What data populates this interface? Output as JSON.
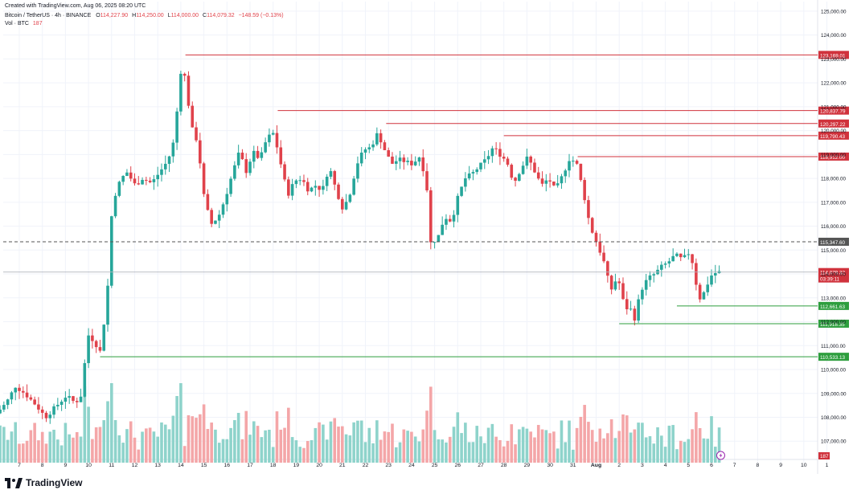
{
  "header": {
    "created": "Created with TradingView.com, Aug 06, 2025 08:20 UTC",
    "symbol": "Bitcoin / TetherUS · 4h · BINANCE",
    "o_label": "O",
    "o": "114,227.90",
    "h_label": "H",
    "h": "114,250.00",
    "l_label": "L",
    "l": "114,000.00",
    "c_label": "C",
    "c": "114,079.32",
    "change": "−148.59 (−0.13%)",
    "vol_label": "Vol · BTC",
    "vol": "187"
  },
  "brand": {
    "name": "TradingView",
    "logo_icon": "tradingview-logo-icon"
  },
  "colors": {
    "up": "#26a69a",
    "down": "#e0424b",
    "up_vol": "#8ed3cb",
    "down_vol": "#f4a6a8",
    "level_red": "#d0323c",
    "level_green": "#2e9e3e"
  },
  "chart_data": {
    "type": "candlestick",
    "y_ticks": [
      107000,
      108000,
      109000,
      110000,
      111000,
      112000,
      113000,
      114000,
      115000,
      116000,
      117000,
      118000,
      119000,
      120000,
      121000,
      122000,
      123000,
      124000,
      125000
    ],
    "y_tick_labels": [
      "107,000.00",
      "108,000.00",
      "109,000.00",
      "110,000.00",
      "111,000.00",
      "112,000.00",
      "113,000.00",
      "114,000.00",
      "115,000.00",
      "116,000.00",
      "117,000.00",
      "118,000.00",
      "119,000.00",
      "120,000.00",
      "121,000.00",
      "122,000.00",
      "123,000.00",
      "124,000.00",
      "125,000.00"
    ],
    "ylim": [
      106100,
      125400
    ],
    "x_labels": [
      "7",
      "8",
      "9",
      "10",
      "11",
      "12",
      "13",
      "14",
      "15",
      "16",
      "17",
      "18",
      "19",
      "20",
      "21",
      "22",
      "23",
      "24",
      "25",
      "26",
      "27",
      "28",
      "29",
      "30",
      "31",
      "Aug",
      "2",
      "3",
      "4",
      "5",
      "6",
      "7",
      "8",
      "9",
      "10",
      "1"
    ],
    "levels": [
      {
        "value": 123169.01,
        "label": "123,169.01",
        "color": "red",
        "start_day": 14.2
      },
      {
        "value": 120837.79,
        "label": "120,837.79",
        "color": "red",
        "start_day": 18.2
      },
      {
        "value": 120297.22,
        "label": "120,297.22",
        "color": "red",
        "start_day": 22.9
      },
      {
        "value": 119790.43,
        "label": "119,790.43",
        "color": "red",
        "start_day": 28.0
      },
      {
        "value": 118912.0,
        "label": "118,912.00",
        "color": "red",
        "start_day": 31.2
      },
      {
        "value": 112661.63,
        "label": "112,661.63",
        "color": "green",
        "start_day": 35.5
      },
      {
        "value": 111918.35,
        "label": "111,918.35",
        "color": "green",
        "start_day": 33.0
      },
      {
        "value": 110533.13,
        "label": "110,533.13",
        "color": "green",
        "start_day": 10.5
      }
    ],
    "dashed_level": {
      "value": 115347.6,
      "label": "115,347.60"
    },
    "current_price": {
      "value": 114079.32,
      "label": "114,079.32",
      "countdown": "03:39:11"
    },
    "volume_badge": "187",
    "anchors": [
      [
        6.0,
        108000
      ],
      [
        6.6,
        108600
      ],
      [
        7.0,
        109300
      ],
      [
        7.4,
        109000
      ],
      [
        7.9,
        108500
      ],
      [
        8.3,
        108000
      ],
      [
        8.8,
        108500
      ],
      [
        9.2,
        108900
      ],
      [
        9.6,
        108600
      ],
      [
        9.9,
        109000
      ],
      [
        10.1,
        111500
      ],
      [
        10.4,
        111200
      ],
      [
        10.7,
        110700
      ],
      [
        11.0,
        113500
      ],
      [
        11.2,
        117000
      ],
      [
        11.5,
        117800
      ],
      [
        11.8,
        118300
      ],
      [
        12.2,
        117700
      ],
      [
        12.5,
        118000
      ],
      [
        12.9,
        117800
      ],
      [
        13.2,
        118200
      ],
      [
        13.5,
        118600
      ],
      [
        13.8,
        119200
      ],
      [
        14.0,
        120800
      ],
      [
        14.2,
        122800
      ],
      [
        14.4,
        122000
      ],
      [
        14.6,
        120200
      ],
      [
        14.9,
        119500
      ],
      [
        15.2,
        117000
      ],
      [
        15.5,
        116100
      ],
      [
        15.8,
        116400
      ],
      [
        16.1,
        117200
      ],
      [
        16.4,
        118200
      ],
      [
        16.7,
        119100
      ],
      [
        17.0,
        118300
      ],
      [
        17.3,
        119100
      ],
      [
        17.6,
        118800
      ],
      [
        17.9,
        119700
      ],
      [
        18.2,
        119900
      ],
      [
        18.5,
        118600
      ],
      [
        18.8,
        117300
      ],
      [
        19.1,
        117900
      ],
      [
        19.4,
        118000
      ],
      [
        19.7,
        117500
      ],
      [
        20.0,
        117700
      ],
      [
        20.3,
        117500
      ],
      [
        20.6,
        118500
      ],
      [
        20.9,
        117500
      ],
      [
        21.2,
        116700
      ],
      [
        21.5,
        117400
      ],
      [
        21.8,
        118600
      ],
      [
        22.1,
        119200
      ],
      [
        22.4,
        119300
      ],
      [
        22.7,
        119900
      ],
      [
        23.0,
        119200
      ],
      [
        23.3,
        118600
      ],
      [
        23.6,
        118800
      ],
      [
        23.9,
        118700
      ],
      [
        24.2,
        118600
      ],
      [
        24.5,
        118900
      ],
      [
        24.8,
        118000
      ],
      [
        25.0,
        115300
      ],
      [
        25.3,
        115500
      ],
      [
        25.6,
        116400
      ],
      [
        25.9,
        116200
      ],
      [
        26.2,
        117300
      ],
      [
        26.5,
        118000
      ],
      [
        26.8,
        118200
      ],
      [
        27.1,
        118500
      ],
      [
        27.4,
        118800
      ],
      [
        27.7,
        119300
      ],
      [
        28.0,
        119000
      ],
      [
        28.3,
        118700
      ],
      [
        28.6,
        117800
      ],
      [
        28.9,
        118400
      ],
      [
        29.2,
        118900
      ],
      [
        29.5,
        118300
      ],
      [
        29.8,
        117700
      ],
      [
        30.1,
        118000
      ],
      [
        30.4,
        117500
      ],
      [
        30.7,
        118100
      ],
      [
        31.0,
        118800
      ],
      [
        31.3,
        118700
      ],
      [
        31.6,
        117500
      ],
      [
        31.9,
        116000
      ],
      [
        32.2,
        115300
      ],
      [
        32.5,
        114500
      ],
      [
        32.8,
        113300
      ],
      [
        33.1,
        113900
      ],
      [
        33.4,
        112600
      ],
      [
        33.7,
        112500
      ],
      [
        33.8,
        112000
      ],
      [
        34.1,
        113300
      ],
      [
        34.4,
        113800
      ],
      [
        34.7,
        114000
      ],
      [
        35.0,
        114300
      ],
      [
        35.3,
        114500
      ],
      [
        35.6,
        114800
      ],
      [
        35.9,
        114600
      ],
      [
        36.2,
        114900
      ],
      [
        36.4,
        114300
      ],
      [
        36.6,
        112900
      ],
      [
        36.9,
        113300
      ],
      [
        37.1,
        113900
      ],
      [
        37.4,
        114079
      ]
    ]
  }
}
